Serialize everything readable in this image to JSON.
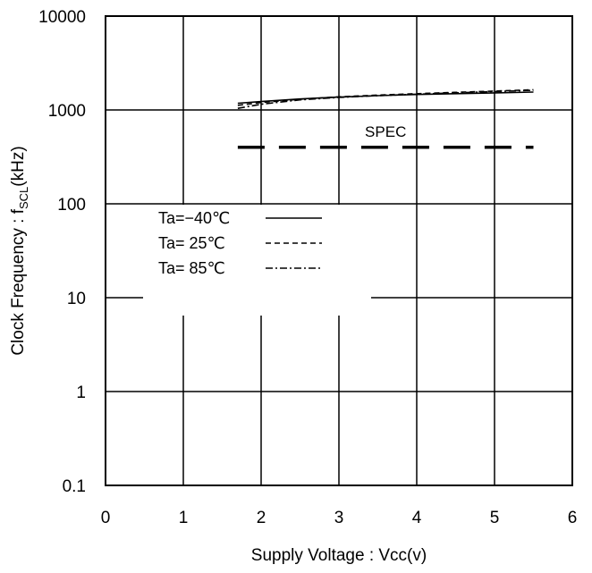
{
  "chart_data": {
    "type": "line",
    "xlabel": "Supply Voltage : Vcc(v)",
    "ylabel": {
      "main": "Clock Frequency : f",
      "sub": "SCL",
      "unit": "(kHz)"
    },
    "xlim": [
      0,
      6
    ],
    "ylim": [
      0.1,
      10000
    ],
    "yscale": "log",
    "grid": true,
    "legend_placement": "middle-left",
    "x_ticks": [
      0,
      1,
      2,
      3,
      4,
      5,
      6
    ],
    "x_tick_labels": [
      "0",
      "1",
      "2",
      "3",
      "4",
      "5",
      "6"
    ],
    "y_ticks": [
      0.1,
      1,
      10,
      100,
      1000,
      10000
    ],
    "y_tick_labels": [
      "0.1",
      "1",
      "10",
      "100",
      "1000",
      "10000"
    ],
    "series": [
      {
        "name": "Ta=−40℃",
        "dash": "solid",
        "x": [
          1.7,
          2.0,
          2.5,
          3.0,
          3.5,
          4.0,
          4.5,
          5.0,
          5.5
        ],
        "y": [
          1180,
          1230,
          1310,
          1370,
          1420,
          1460,
          1490,
          1520,
          1550
        ]
      },
      {
        "name": "Ta= 25℃",
        "dash": "dashed",
        "x": [
          1.7,
          2.0,
          2.5,
          3.0,
          3.5,
          4.0,
          4.5,
          5.0,
          5.5
        ],
        "y": [
          1120,
          1200,
          1300,
          1380,
          1440,
          1490,
          1540,
          1590,
          1640
        ]
      },
      {
        "name": "Ta= 85℃",
        "dash": "dashdot",
        "x": [
          1.7,
          2.0,
          2.5,
          3.0,
          3.5,
          4.0,
          4.5,
          5.0,
          5.5
        ],
        "y": [
          1040,
          1150,
          1280,
          1360,
          1420,
          1470,
          1520,
          1570,
          1620
        ]
      }
    ],
    "spec_line": {
      "label": "SPEC",
      "y": 400,
      "x": [
        1.7,
        5.5
      ]
    }
  }
}
